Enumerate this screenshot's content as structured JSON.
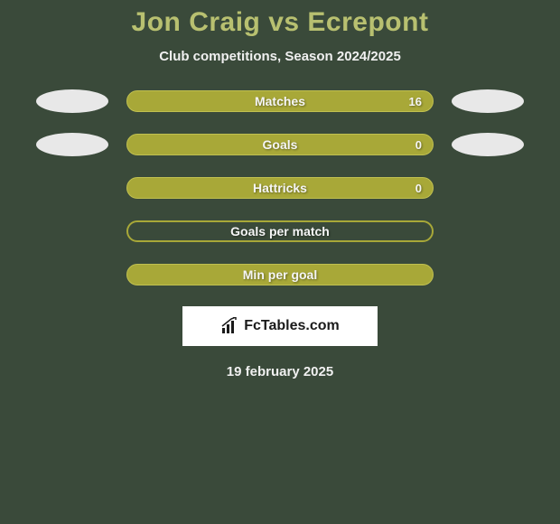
{
  "header": {
    "title": "Jon Craig vs Ecrepont",
    "subtitle": "Club competitions, Season 2024/2025"
  },
  "stats": [
    {
      "label": "Matches",
      "value": "16",
      "filled": true,
      "show_left_ellipse": true,
      "show_right_ellipse": true
    },
    {
      "label": "Goals",
      "value": "0",
      "filled": true,
      "show_left_ellipse": true,
      "show_right_ellipse": true
    },
    {
      "label": "Hattricks",
      "value": "0",
      "filled": true,
      "show_left_ellipse": false,
      "show_right_ellipse": false
    },
    {
      "label": "Goals per match",
      "value": "",
      "filled": false,
      "show_left_ellipse": false,
      "show_right_ellipse": false
    },
    {
      "label": "Min per goal",
      "value": "",
      "filled": true,
      "show_left_ellipse": false,
      "show_right_ellipse": false
    }
  ],
  "branding": {
    "text": "FcTables.com"
  },
  "footer": {
    "date": "19 february 2025"
  },
  "colors": {
    "background": "#3a4a3a",
    "accent": "#a8a838",
    "title": "#b8c070",
    "text_light": "#f0f0f0",
    "ellipse": "#e8e8e8",
    "logo_bg": "#ffffff",
    "logo_text": "#1a1a1a"
  }
}
